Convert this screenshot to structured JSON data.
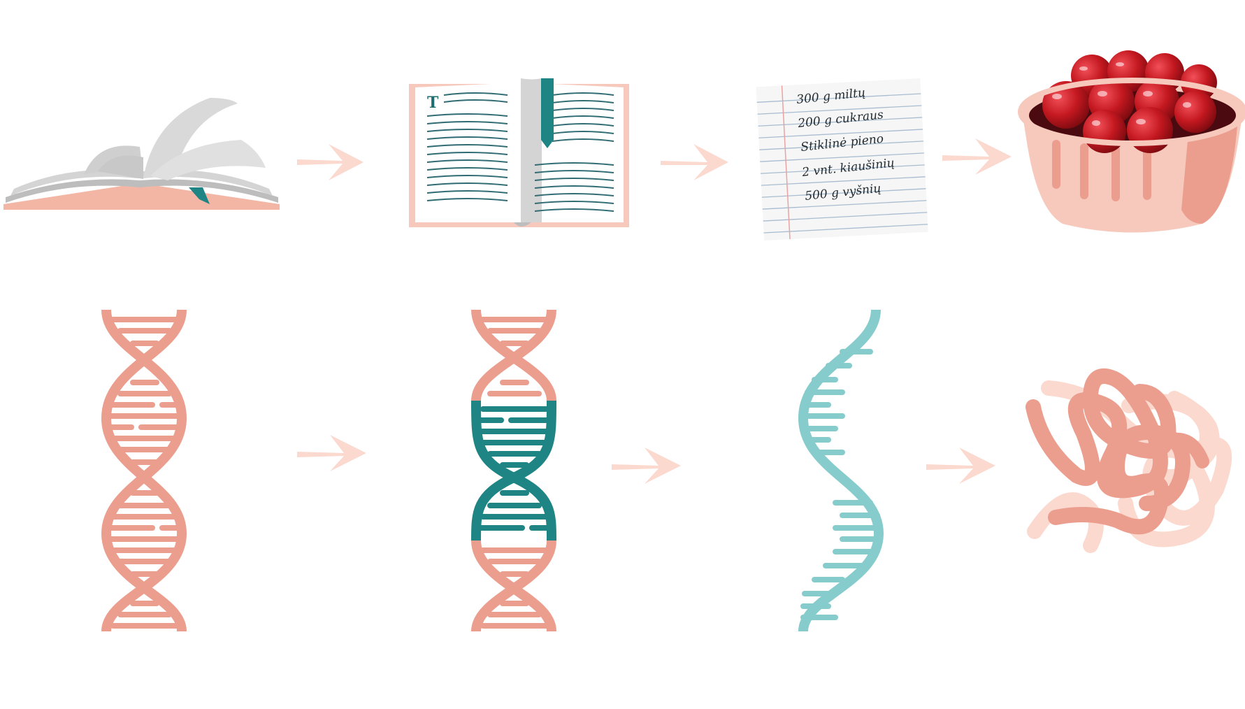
{
  "colors": {
    "salmon": "#ec9e8e",
    "salmon_light": "#f7c9bd",
    "salmon_pale": "#fbd9cf",
    "teal": "#1f8584",
    "aqua": "#86cccd",
    "page_gray": "#d4d4d4",
    "cherry": "#c21820"
  },
  "book": {
    "initial_letter": "T"
  },
  "recipe": {
    "lines": [
      "300 g miltų",
      "200 g cukraus",
      "Stiklinė pieno",
      "2 vnt. kiaušinių",
      "500 g vyšnių"
    ]
  },
  "icons": {
    "row_top": [
      "open-book-icon",
      "book-page-icon",
      "recipe-note-icon",
      "cherry-pie-icon"
    ],
    "row_bottom": [
      "dna-double-helix-icon",
      "dna-gene-segment-icon",
      "rna-single-strand-icon",
      "protein-coil-icon"
    ]
  }
}
